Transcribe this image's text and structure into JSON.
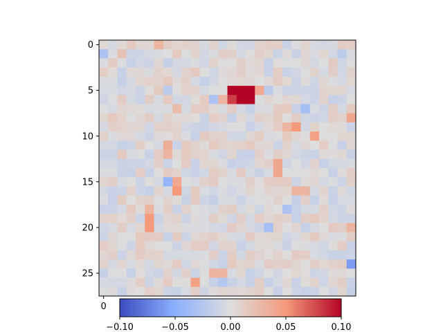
{
  "chart_data": {
    "type": "heatmap",
    "title": "",
    "xlabel": "",
    "ylabel": "",
    "rows": 28,
    "cols": 28,
    "colormap": "coolwarm",
    "vmin": -0.1,
    "vmax": 0.1,
    "y_ticks": [
      0,
      5,
      10,
      15,
      20,
      25
    ],
    "y_tick_labels": [
      "0",
      "5",
      "10",
      "15",
      "20",
      "25"
    ],
    "x_ticks": [
      0
    ],
    "x_tick_labels": [
      "0"
    ],
    "colorbar": {
      "orientation": "horizontal",
      "ticks": [
        -0.1,
        -0.05,
        0.0,
        0.05,
        0.1
      ],
      "tick_labels": [
        "−0.10",
        "−0.05",
        "0.00",
        "0.05",
        "0.10"
      ]
    },
    "background_noise_range": [
      -0.015,
      0.015
    ],
    "notable_cells": [
      {
        "row": 5,
        "col": 14,
        "value": 0.1
      },
      {
        "row": 5,
        "col": 15,
        "value": 0.1
      },
      {
        "row": 5,
        "col": 16,
        "value": 0.1
      },
      {
        "row": 6,
        "col": 14,
        "value": 0.08
      },
      {
        "row": 6,
        "col": 15,
        "value": 0.1
      },
      {
        "row": 6,
        "col": 16,
        "value": 0.1
      },
      {
        "row": 0,
        "col": 6,
        "value": 0.03
      },
      {
        "row": 1,
        "col": 0,
        "value": -0.03
      },
      {
        "row": 1,
        "col": 2,
        "value": 0.02
      },
      {
        "row": 1,
        "col": 26,
        "value": -0.02
      },
      {
        "row": 5,
        "col": 7,
        "value": -0.02
      },
      {
        "row": 5,
        "col": 17,
        "value": 0.04
      },
      {
        "row": 5,
        "col": 18,
        "value": -0.02
      },
      {
        "row": 6,
        "col": 12,
        "value": -0.03
      },
      {
        "row": 6,
        "col": 13,
        "value": 0.03
      },
      {
        "row": 7,
        "col": 8,
        "value": 0.025
      },
      {
        "row": 7,
        "col": 22,
        "value": -0.035
      },
      {
        "row": 8,
        "col": 27,
        "value": 0.04
      },
      {
        "row": 9,
        "col": 20,
        "value": 0.03
      },
      {
        "row": 9,
        "col": 21,
        "value": 0.05
      },
      {
        "row": 10,
        "col": 23,
        "value": 0.045
      },
      {
        "row": 11,
        "col": 7,
        "value": 0.035
      },
      {
        "row": 12,
        "col": 7,
        "value": 0.03
      },
      {
        "row": 13,
        "col": 19,
        "value": 0.04
      },
      {
        "row": 14,
        "col": 19,
        "value": 0.04
      },
      {
        "row": 15,
        "col": 7,
        "value": -0.045
      },
      {
        "row": 15,
        "col": 8,
        "value": 0.04
      },
      {
        "row": 16,
        "col": 8,
        "value": 0.05
      },
      {
        "row": 16,
        "col": 21,
        "value": 0.03
      },
      {
        "row": 16,
        "col": 22,
        "value": 0.03
      },
      {
        "row": 18,
        "col": 5,
        "value": 0.03
      },
      {
        "row": 18,
        "col": 20,
        "value": -0.03
      },
      {
        "row": 19,
        "col": 5,
        "value": 0.05
      },
      {
        "row": 20,
        "col": 5,
        "value": 0.05
      },
      {
        "row": 20,
        "col": 18,
        "value": -0.035
      },
      {
        "row": 20,
        "col": 27,
        "value": 0.03
      },
      {
        "row": 24,
        "col": 27,
        "value": -0.06
      },
      {
        "row": 25,
        "col": 12,
        "value": 0.03
      },
      {
        "row": 25,
        "col": 13,
        "value": 0.03
      },
      {
        "row": 26,
        "col": 10,
        "value": 0.045
      },
      {
        "row": 26,
        "col": 13,
        "value": -0.025
      }
    ]
  }
}
